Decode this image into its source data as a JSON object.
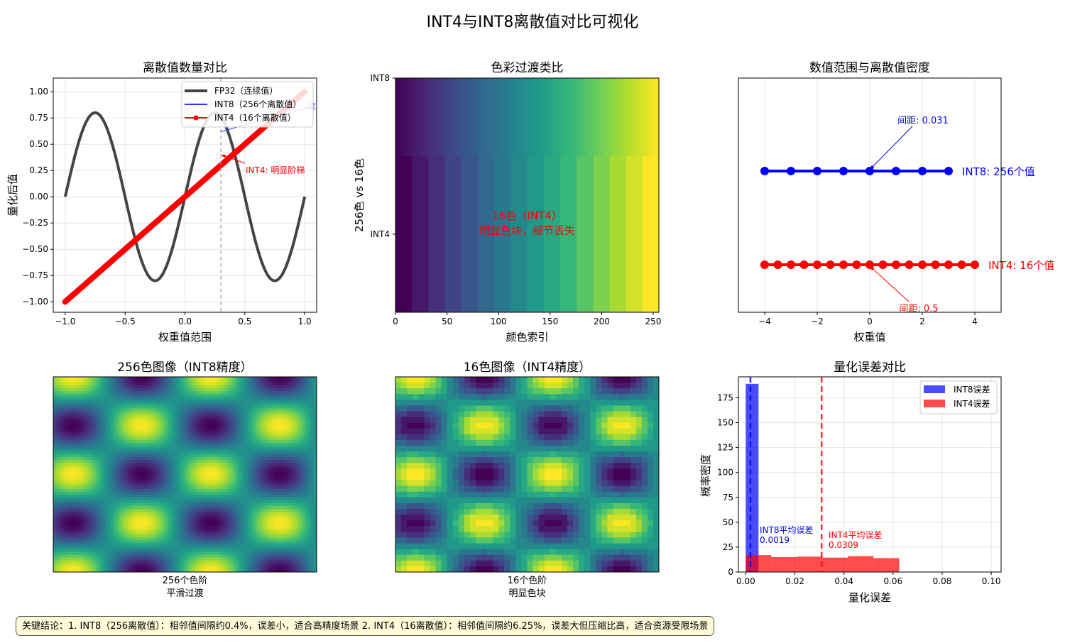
{
  "figure": {
    "title": "INT4与INT8离散值对比可视化",
    "footer_note": "关键结论：1. INT8（256离散值）：相邻值间隔约0.4%，误差小，适合高精度场景  2. INT4（16离散值）：相邻值间隔约6.25%，误差大但压缩比高，适合资源受限场景"
  },
  "chart_data": [
    {
      "id": "discrete-count",
      "type": "line",
      "title": "离散值数量对比",
      "xlabel": "权重值范围",
      "ylabel": "量化后值",
      "xlim": [
        -1.1,
        1.1
      ],
      "ylim": [
        -1.1,
        1.13
      ],
      "xticks": [
        -1.0,
        -0.5,
        0.0,
        0.5,
        1.0
      ],
      "xtick_labels": [
        "−1.0",
        "−0.5",
        "0.0",
        "0.5",
        "1.0"
      ],
      "yticks": [
        -1.0,
        -0.75,
        -0.5,
        -0.25,
        0.0,
        0.25,
        0.5,
        0.75,
        1.0
      ],
      "ytick_labels": [
        "−1.00",
        "−0.75",
        "−0.50",
        "−0.25",
        "0.00",
        "0.25",
        "0.50",
        "0.75",
        "1.00"
      ],
      "grid": true,
      "legend": [
        "FP32（连续值）",
        "INT8（256个离散值）",
        "INT4（16个离散值）"
      ],
      "series": [
        {
          "name": "FP32（连续值）",
          "function": "sin(2*pi*x)*0.8",
          "x_range": [
            -1,
            1
          ],
          "color": "#444444"
        },
        {
          "name": "INT8（256个离散值）",
          "function": "x",
          "x_range": [
            -1,
            1
          ],
          "levels": 256,
          "color": "#3333ff"
        },
        {
          "name": "INT4（16个离散值）",
          "function": "x",
          "x_range": [
            -1,
            1
          ],
          "levels": 16,
          "color": "#ff0000"
        }
      ],
      "vline_x": 0.3,
      "annotations": [
        {
          "text": "INT4: 明显阶梯",
          "x": 0.3,
          "y": 0.4,
          "color": "#ff0000"
        },
        {
          "text": "度",
          "x": 0.3,
          "y": 0.62,
          "color": "#3333ff"
        }
      ]
    },
    {
      "id": "color-transition",
      "type": "heatmap",
      "title": "色彩过渡类比",
      "xlabel": "颜色索引",
      "ylabel": "256色 vs 16色",
      "xlim": [
        0,
        255
      ],
      "xticks": [
        0,
        50,
        100,
        150,
        200,
        250
      ],
      "xtick_labels": [
        "0",
        "50",
        "100",
        "150",
        "200",
        "250"
      ],
      "yticks": [
        0,
        1
      ],
      "ytick_labels": [
        "INT8",
        "INT4"
      ],
      "rows": [
        {
          "name": "INT8",
          "levels": 256
        },
        {
          "name": "INT4",
          "levels": 16
        }
      ],
      "colormap": "viridis",
      "annotation": {
        "line1": "16色（INT4）",
        "line2": "明显色块，细节丢失",
        "color": "#ff0000"
      }
    },
    {
      "id": "range-density",
      "type": "scatter",
      "title": "数值范围与离散值密度",
      "xlabel": "权重值",
      "ylabel": "",
      "xlim": [
        -5,
        5
      ],
      "xticks": [
        -4,
        -2,
        0,
        2,
        4
      ],
      "xtick_labels": [
        "−4",
        "−2",
        "0",
        "2",
        "4"
      ],
      "grid": true,
      "series": [
        {
          "name": "INT8",
          "x": [
            -4,
            -3,
            -2,
            -1,
            0,
            1,
            2,
            3
          ],
          "label": "INT8: 256个值",
          "color": "#0000ff"
        },
        {
          "name": "INT4",
          "x": [
            -4,
            -3.5,
            -3,
            -2.5,
            -2,
            -1.5,
            -1,
            -0.5,
            0,
            0.5,
            1,
            1.5,
            2,
            2.5,
            3,
            3.5,
            4
          ],
          "label": "INT4: 16个值",
          "color": "#ff0000"
        }
      ],
      "annotations": [
        {
          "text": "间距: 0.031",
          "color": "#0000ff"
        },
        {
          "text": "间距: 0.5",
          "color": "#ff0000"
        }
      ]
    },
    {
      "id": "image-256",
      "type": "heatmap",
      "title": "256色图像（INT8精度）",
      "function": "sin(x)*cos(y)",
      "levels": 256,
      "colormap": "viridis",
      "caption_line1": "256个色阶",
      "caption_line2": "平滑过渡"
    },
    {
      "id": "image-16",
      "type": "heatmap",
      "title": "16色图像（INT4精度）",
      "function": "sin(x)*cos(y)",
      "levels": 16,
      "colormap": "viridis",
      "caption_line1": "16个色阶",
      "caption_line2": "明显色块"
    },
    {
      "id": "error-hist",
      "type": "bar",
      "title": "量化误差对比",
      "xlabel": "量化误差",
      "ylabel": "概率密度",
      "xlim": [
        -0.003,
        0.104
      ],
      "ylim": [
        0,
        196
      ],
      "xticks": [
        0,
        0.02,
        0.04,
        0.06,
        0.08,
        0.1
      ],
      "xtick_labels": [
        "0.00",
        "0.02",
        "0.04",
        "0.06",
        "0.08",
        "0.10"
      ],
      "yticks": [
        0,
        25,
        50,
        75,
        100,
        125,
        150,
        175
      ],
      "ytick_labels": [
        "0",
        "25",
        "50",
        "75",
        "100",
        "125",
        "150",
        "175"
      ],
      "grid": true,
      "legend": [
        "INT8误差",
        "INT4误差"
      ],
      "series": [
        {
          "name": "INT8误差",
          "bins": [
            [
              0.0,
              0.0052,
              189
            ]
          ],
          "color": "#0000ff"
        },
        {
          "name": "INT4误差",
          "bins": [
            [
              0.0,
              0.0104,
              17
            ],
            [
              0.0104,
              0.0208,
              15
            ],
            [
              0.0208,
              0.0312,
              15.5
            ],
            [
              0.0312,
              0.0416,
              14.5
            ],
            [
              0.0416,
              0.052,
              16
            ],
            [
              0.052,
              0.0625,
              14
            ]
          ],
          "color": "#ff0000"
        }
      ],
      "mean_lines": [
        {
          "name": "INT8平均误差",
          "value": 0.0019,
          "label_line1": "INT8平均误差",
          "label_line2": "0.0019",
          "color": "#0000ff"
        },
        {
          "name": "INT4平均误差",
          "value": 0.0309,
          "label_line1": "INT4平均误差",
          "label_line2": "0.0309",
          "color": "#ff0000"
        }
      ]
    }
  ]
}
